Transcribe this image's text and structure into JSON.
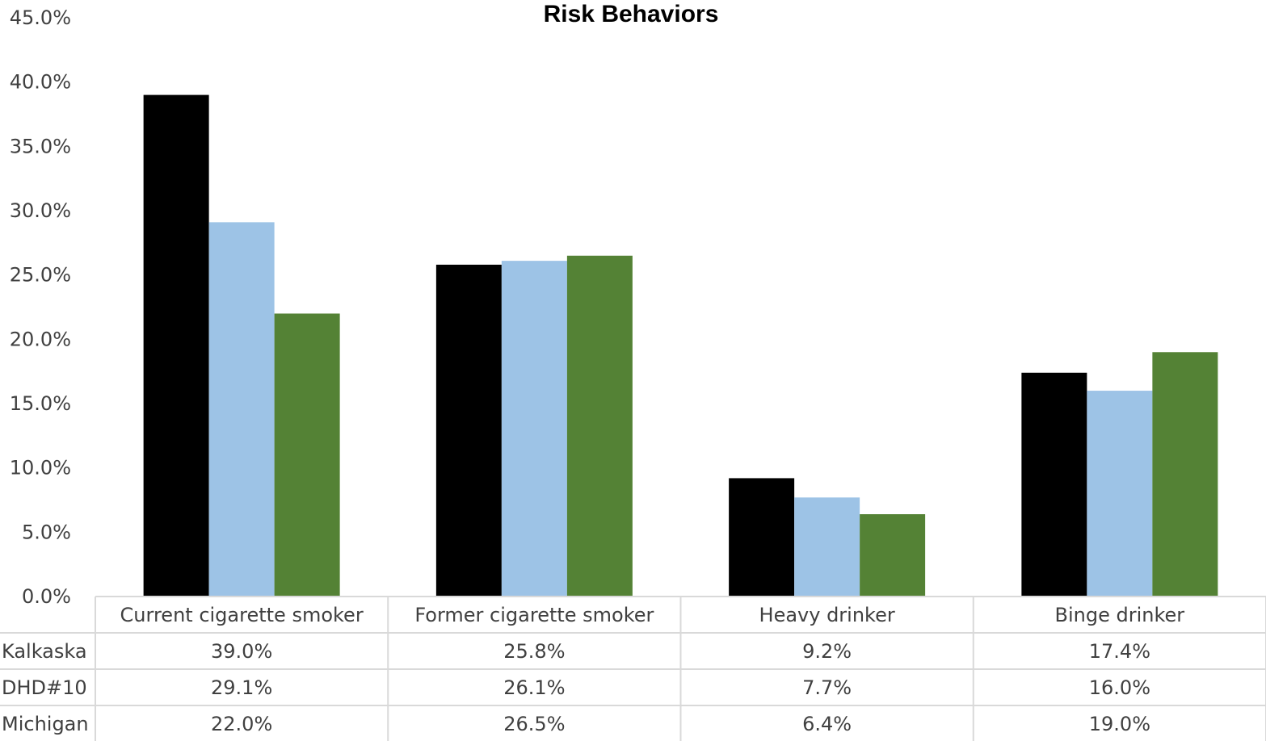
{
  "chart_data": {
    "type": "bar",
    "title": "Risk Behaviors",
    "categories": [
      "Current cigarette smoker",
      "Former cigarette smoker",
      "Heavy drinker",
      "Binge drinker"
    ],
    "series": [
      {
        "name": "Kalkaska",
        "color": "#000000",
        "values": [
          39.0,
          25.8,
          9.2,
          17.4
        ],
        "labels": [
          "39.0%",
          "25.8%",
          "9.2%",
          "17.4%"
        ]
      },
      {
        "name": "DHD#10",
        "color": "#9DC3E6",
        "values": [
          29.1,
          26.1,
          7.7,
          16.0
        ],
        "labels": [
          "29.1%",
          "26.1%",
          "7.7%",
          "16.0%"
        ]
      },
      {
        "name": "Michigan",
        "color": "#548235",
        "values": [
          22.0,
          26.5,
          6.4,
          19.0
        ],
        "labels": [
          "22.0%",
          "26.5%",
          "6.4%",
          "19.0%"
        ]
      }
    ],
    "ylim": [
      0,
      45
    ],
    "yticks": [
      {
        "value": 0,
        "label": "0.0%"
      },
      {
        "value": 5,
        "label": "5.0%"
      },
      {
        "value": 10,
        "label": "10.0%"
      },
      {
        "value": 15,
        "label": "15.0%"
      },
      {
        "value": 20,
        "label": "20.0%"
      },
      {
        "value": 25,
        "label": "25.0%"
      },
      {
        "value": 30,
        "label": "30.0%"
      },
      {
        "value": 35,
        "label": "35.0%"
      },
      {
        "value": 40,
        "label": "40.0%"
      },
      {
        "value": 45,
        "label": "45.0%"
      }
    ],
    "gridlines": false,
    "legend": "data-table-below"
  }
}
